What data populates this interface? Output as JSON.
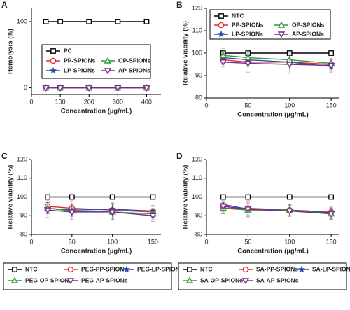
{
  "chart_data": [
    {
      "type": "line",
      "label": "A",
      "x_label": "Concentration (µg/mL)",
      "y_label": "Hemolysis (%)",
      "x": [
        50,
        100,
        200,
        300,
        400
      ],
      "xlim": [
        0,
        450
      ],
      "xticks": [
        0,
        100,
        200,
        300,
        400
      ],
      "ylim": [
        -10,
        120
      ],
      "yticks": [
        0,
        100
      ],
      "series": [
        {
          "name": "PC",
          "color": "#000000",
          "values": [
            100,
            100,
            100,
            100,
            100
          ]
        },
        {
          "name": "PP-SPIONs",
          "color": "#e0302c",
          "values": [
            0,
            0,
            0,
            0,
            0
          ]
        },
        {
          "name": "LP-SPIONs",
          "color": "#2c4ea0",
          "values": [
            0,
            0,
            0,
            0,
            0
          ]
        },
        {
          "name": "OP-SPIONs",
          "color": "#2a9a3a",
          "values": [
            0,
            0,
            0,
            0,
            0
          ]
        },
        {
          "name": "AP-SPIONs",
          "color": "#7a2a8a",
          "values": [
            0,
            0,
            0,
            0,
            0
          ]
        }
      ]
    },
    {
      "type": "line",
      "label": "B",
      "x_label": "Concentration (µg/mL)",
      "y_label": "Relative viability (%)",
      "x": [
        20,
        50,
        100,
        150
      ],
      "xlim": [
        0,
        160
      ],
      "xticks": [
        0,
        50,
        100,
        150
      ],
      "ylim": [
        80,
        120
      ],
      "yticks": [
        80,
        90,
        100,
        110,
        120
      ],
      "series": [
        {
          "name": "NTC",
          "color": "#000000",
          "values": [
            100,
            100,
            100,
            100
          ],
          "errors": [
            0,
            0,
            0,
            0
          ]
        },
        {
          "name": "PP-SPIONs",
          "color": "#e0302c",
          "values": [
            97,
            96,
            96,
            95
          ],
          "errors": [
            3,
            3,
            3,
            2
          ]
        },
        {
          "name": "LP-SPIONs",
          "color": "#2c4ea0",
          "values": [
            98,
            97,
            96,
            94
          ],
          "errors": [
            3,
            3,
            3,
            2
          ]
        },
        {
          "name": "OP-SPIONs",
          "color": "#2a9a3a",
          "values": [
            99,
            98,
            97,
            95.5
          ],
          "errors": [
            3,
            3,
            3,
            2
          ]
        },
        {
          "name": "AP-SPIONs",
          "color": "#7a2a8a",
          "values": [
            96,
            95.5,
            95,
            94.5
          ],
          "errors": [
            3,
            4,
            4,
            3
          ]
        }
      ]
    },
    {
      "type": "line",
      "label": "C",
      "x_label": "Concentration (µg/mL)",
      "y_label": "Relative viability (%)",
      "x": [
        20,
        50,
        100,
        150
      ],
      "xlim": [
        0,
        160
      ],
      "xticks": [
        0,
        50,
        100,
        150
      ],
      "ylim": [
        80,
        120
      ],
      "yticks": [
        80,
        90,
        100,
        110,
        120
      ],
      "series": [
        {
          "name": "NTC",
          "color": "#000000",
          "values": [
            100,
            100,
            100,
            100
          ],
          "errors": [
            0,
            0,
            0,
            0
          ]
        },
        {
          "name": "PEG-PP-SPIONs",
          "color": "#e0302c",
          "values": [
            95,
            94,
            93,
            92
          ],
          "errors": [
            3,
            4,
            4,
            3
          ]
        },
        {
          "name": "PEG-LP-SPIONs",
          "color": "#2c4ea0",
          "values": [
            94,
            93,
            93.5,
            92.5
          ],
          "errors": [
            3,
            3,
            3,
            3
          ]
        },
        {
          "name": "PEG-OP-SPIONs",
          "color": "#2a9a3a",
          "values": [
            94,
            92.5,
            92,
            91
          ],
          "errors": [
            3,
            3,
            4,
            3
          ]
        },
        {
          "name": "PEG-AP-SPIONs",
          "color": "#7a2a8a",
          "values": [
            93,
            92,
            92,
            90
          ],
          "errors": [
            4,
            4,
            4,
            3
          ]
        }
      ]
    },
    {
      "type": "line",
      "label": "D",
      "x_label": "Concentration (µg/mL)",
      "y_label": "Relative viability (%)",
      "x": [
        20,
        50,
        100,
        150
      ],
      "xlim": [
        0,
        160
      ],
      "xticks": [
        0,
        50,
        100,
        150
      ],
      "ylim": [
        80,
        120
      ],
      "yticks": [
        80,
        90,
        100,
        110,
        120
      ],
      "series": [
        {
          "name": "NTC",
          "color": "#000000",
          "values": [
            100,
            100,
            100,
            100
          ],
          "errors": [
            0,
            0,
            0,
            0
          ]
        },
        {
          "name": "SA-PP-SPIONs",
          "color": "#e0302c",
          "values": [
            94,
            94,
            93,
            92
          ],
          "errors": [
            3,
            4,
            3,
            3
          ]
        },
        {
          "name": "SA-LP-SPIONs",
          "color": "#2c4ea0",
          "values": [
            96,
            93.5,
            93,
            91.5
          ],
          "errors": [
            3,
            3,
            3,
            3
          ]
        },
        {
          "name": "SA-OP-SPIONs",
          "color": "#2a9a3a",
          "values": [
            94,
            93,
            93,
            91
          ],
          "errors": [
            3,
            4,
            3,
            3
          ]
        },
        {
          "name": "SA-AP-SPIONs",
          "color": "#7a2a8a",
          "values": [
            95,
            93.5,
            92.5,
            91
          ],
          "errors": [
            3,
            4,
            3,
            3
          ]
        }
      ]
    }
  ]
}
